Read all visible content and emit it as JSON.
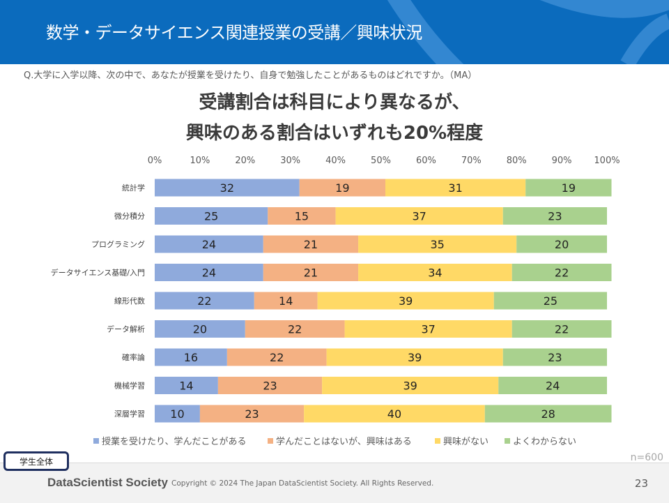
{
  "header": {
    "title": "数学・データサイエンス関連授業の受講／興味状況"
  },
  "question": "Q.大学に入学以降、次の中で、あなたが授業を受けたり、自身で勉強したことがあるものはどれですか。（MA）",
  "headline": {
    "line1": "受講割合は科目により異なるが、",
    "line2": "興味のある割合はいずれも20%程度"
  },
  "badge": "学生全体",
  "sample_size": "n=600",
  "footer": {
    "logo": "DataScientist Society",
    "copyright": "Copyright © 2024  The Japan DataScientist Society. All Rights Reserved.",
    "page": "23"
  },
  "chart_data": {
    "type": "bar",
    "orientation": "horizontal",
    "stacked": true,
    "xlim": [
      0,
      100
    ],
    "xticks": [
      "0%",
      "10%",
      "20%",
      "30%",
      "40%",
      "50%",
      "60%",
      "70%",
      "80%",
      "90%",
      "100%"
    ],
    "grid": false,
    "legend_position": "bottom",
    "categories": [
      "統計学",
      "微分積分",
      "プログラミング",
      "データサイエンス基礎/入門",
      "線形代数",
      "データ解析",
      "確率論",
      "機械学習",
      "深層学習"
    ],
    "series": [
      {
        "name": "授業を受けたり、学んだことがある",
        "color": "#8faadc",
        "values": [
          32,
          25,
          24,
          24,
          22,
          20,
          16,
          14,
          10
        ]
      },
      {
        "name": "学んだことはないが、興味はある",
        "color": "#f4b183",
        "values": [
          19,
          15,
          21,
          21,
          14,
          22,
          22,
          23,
          23
        ]
      },
      {
        "name": "興味がない",
        "color": "#ffd966",
        "values": [
          31,
          37,
          35,
          34,
          39,
          37,
          39,
          39,
          40
        ]
      },
      {
        "name": "よくわからない",
        "color": "#a9d18e",
        "values": [
          19,
          23,
          20,
          22,
          25,
          22,
          23,
          24,
          28
        ]
      }
    ]
  }
}
